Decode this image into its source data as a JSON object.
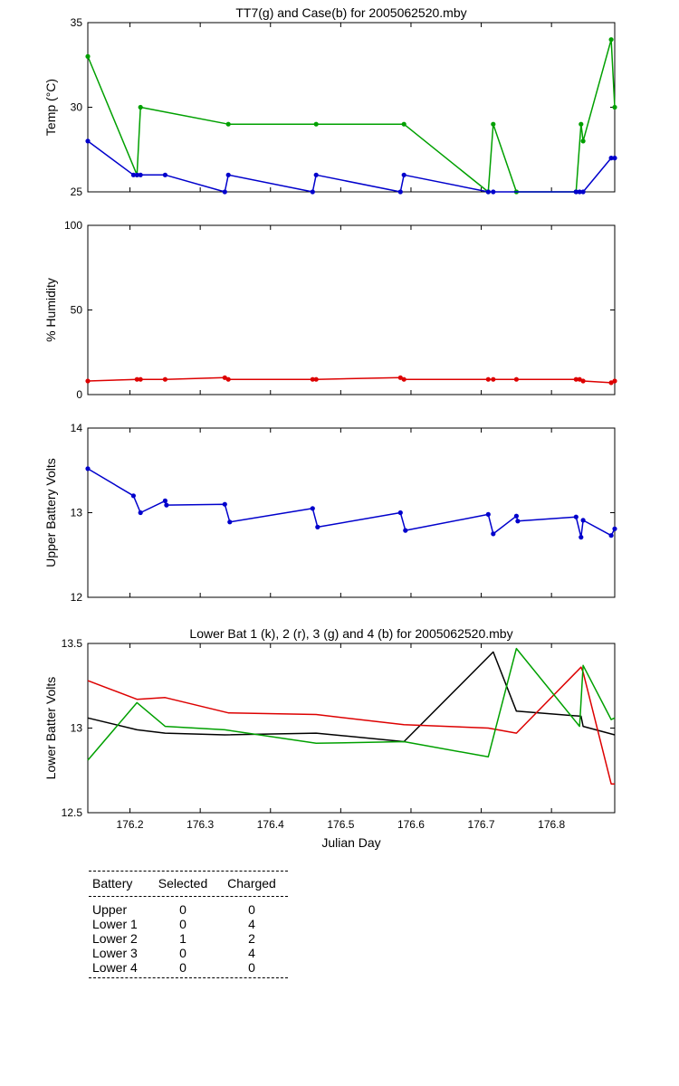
{
  "chart_data": [
    {
      "type": "line",
      "title": "TT7(g) and Case(b) for 2005062520.mby",
      "xlabel": "",
      "ylabel": "Temp  (°C)",
      "xlim": [
        176.14,
        176.89
      ],
      "ylim": [
        25,
        35
      ],
      "yticks": [
        "25",
        "30",
        "35"
      ],
      "xticks": [],
      "series": [
        {
          "color": "#00a000",
          "x": [
            176.14,
            176.21,
            176.215,
            176.34,
            176.465,
            176.59,
            176.71,
            176.717,
            176.75,
            176.835,
            176.842,
            176.845,
            176.885,
            176.89
          ],
          "y": [
            33,
            26,
            30,
            29,
            29,
            29,
            25,
            29,
            25,
            25,
            29,
            28,
            34,
            30
          ]
        },
        {
          "color": "#0000cc",
          "x": [
            176.14,
            176.205,
            176.21,
            176.215,
            176.25,
            176.335,
            176.34,
            176.46,
            176.465,
            176.585,
            176.59,
            176.71,
            176.717,
            176.835,
            176.84,
            176.845,
            176.885,
            176.89
          ],
          "y": [
            28,
            26,
            26,
            26,
            26,
            25,
            26,
            25,
            26,
            25,
            26,
            25,
            25,
            25,
            25,
            25,
            27,
            27
          ]
        }
      ]
    },
    {
      "type": "line",
      "title": "",
      "xlabel": "",
      "ylabel": "% Humidity",
      "xlim": [
        176.14,
        176.89
      ],
      "ylim": [
        0,
        100
      ],
      "yticks": [
        "0",
        "50",
        "100"
      ],
      "xticks": [],
      "series": [
        {
          "color": "#dd0000",
          "x": [
            176.14,
            176.21,
            176.215,
            176.25,
            176.335,
            176.34,
            176.46,
            176.465,
            176.585,
            176.59,
            176.71,
            176.717,
            176.75,
            176.835,
            176.84,
            176.845,
            176.885,
            176.89
          ],
          "y": [
            8,
            9,
            9,
            9,
            10,
            9,
            9,
            9,
            10,
            9,
            9,
            9,
            9,
            9,
            9,
            8,
            7,
            8
          ]
        }
      ]
    },
    {
      "type": "line",
      "title": "",
      "xlabel": "",
      "ylabel": "Upper Battery Volts",
      "xlim": [
        176.14,
        176.89
      ],
      "ylim": [
        12,
        14
      ],
      "yticks": [
        "12",
        "13",
        "14"
      ],
      "xticks": [],
      "series": [
        {
          "color": "#0000cc",
          "x": [
            176.14,
            176.205,
            176.215,
            176.25,
            176.252,
            176.335,
            176.342,
            176.46,
            176.467,
            176.585,
            176.592,
            176.71,
            176.717,
            176.75,
            176.752,
            176.835,
            176.842,
            176.845,
            176.885,
            176.89
          ],
          "y": [
            13.52,
            13.2,
            13.0,
            13.14,
            13.09,
            13.1,
            12.89,
            13.05,
            12.83,
            13.0,
            12.79,
            12.98,
            12.75,
            12.96,
            12.9,
            12.95,
            12.71,
            12.91,
            12.73,
            12.81
          ]
        }
      ]
    },
    {
      "type": "line",
      "title": "Lower Bat 1 (k), 2 (r), 3 (g) and 4 (b) for 2005062520.mby",
      "xlabel": "Julian Day",
      "ylabel": "Lower Batter Volts",
      "xlim": [
        176.14,
        176.89
      ],
      "ylim": [
        12.5,
        13.5
      ],
      "yticks": [
        "12.5",
        "13",
        "13.5"
      ],
      "xticks": [
        "176.2",
        "176.3",
        "176.4",
        "176.5",
        "176.6",
        "176.7",
        "176.8"
      ],
      "series": [
        {
          "color": "#000000",
          "x": [
            176.14,
            176.21,
            176.25,
            176.335,
            176.465,
            176.59,
            176.717,
            176.75,
            176.842,
            176.845,
            176.89
          ],
          "y": [
            13.06,
            12.99,
            12.97,
            12.96,
            12.97,
            12.92,
            13.45,
            13.1,
            13.07,
            13.01,
            12.96
          ]
        },
        {
          "color": "#dd0000",
          "x": [
            176.14,
            176.21,
            176.25,
            176.34,
            176.465,
            176.59,
            176.71,
            176.75,
            176.842,
            176.845,
            176.885,
            176.89
          ],
          "y": [
            13.28,
            13.17,
            13.18,
            13.09,
            13.08,
            13.02,
            13.0,
            12.97,
            13.36,
            13.33,
            12.67,
            12.67
          ]
        },
        {
          "color": "#00a000",
          "x": [
            176.14,
            176.21,
            176.25,
            176.335,
            176.465,
            176.59,
            176.71,
            176.75,
            176.84,
            176.845,
            176.885,
            176.89
          ],
          "y": [
            12.81,
            13.15,
            13.01,
            12.99,
            12.91,
            12.92,
            12.83,
            13.47,
            13.01,
            13.37,
            13.05,
            13.06
          ]
        }
      ]
    }
  ],
  "battery_table": {
    "headers": [
      "Battery",
      "Selected",
      "Charged"
    ],
    "rows": [
      {
        "battery": "Upper",
        "selected": "0",
        "charged": "0"
      },
      {
        "battery": "Lower 1",
        "selected": "0",
        "charged": "4"
      },
      {
        "battery": "Lower 2",
        "selected": "1",
        "charged": "2"
      },
      {
        "battery": "Lower 3",
        "selected": "0",
        "charged": "4"
      },
      {
        "battery": "Lower 4",
        "selected": "0",
        "charged": "0"
      }
    ]
  }
}
